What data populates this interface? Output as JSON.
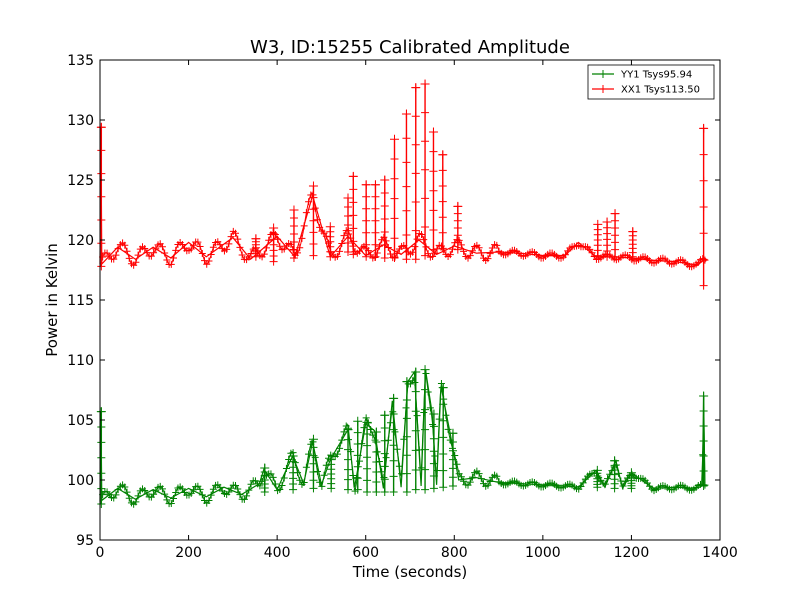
{
  "chart_data": {
    "type": "line",
    "title": "W3, ID:15255 Calibrated Amplitude",
    "xlabel": "Time (seconds)",
    "ylabel": "Power in Kelvin",
    "xlim": [
      0,
      1400
    ],
    "ylim": [
      95,
      135
    ],
    "xticks": [
      0,
      200,
      400,
      600,
      800,
      1000,
      1200,
      1400
    ],
    "yticks": [
      95,
      100,
      105,
      110,
      115,
      120,
      125,
      130,
      135
    ],
    "grid": false,
    "legend_position": "top-right",
    "marker": "plus",
    "series": [
      {
        "name": "YY1 Tsys95.94",
        "color": "#008000",
        "baseline": 99.0,
        "osc_amp": 0.55,
        "osc_period": 42,
        "points": [
          [
            0,
            98.2
          ],
          [
            2,
            105.7
          ],
          [
            4,
            98.3
          ],
          [
            40,
            99.3
          ],
          [
            80,
            98.4
          ],
          [
            120,
            99.2
          ],
          [
            160,
            98.5
          ],
          [
            200,
            99.3
          ],
          [
            240,
            98.6
          ],
          [
            280,
            99.4
          ],
          [
            320,
            98.8
          ],
          [
            360,
            99.7
          ],
          [
            370,
            100.9
          ],
          [
            400,
            99.2
          ],
          [
            435,
            102.0
          ],
          [
            460,
            99.7
          ],
          [
            480,
            103.2
          ],
          [
            500,
            99.6
          ],
          [
            520,
            101.7
          ],
          [
            560,
            104.2
          ],
          [
            575,
            99.4
          ],
          [
            600,
            104.7
          ],
          [
            620,
            104.1
          ],
          [
            640,
            99.3
          ],
          [
            660,
            106.6
          ],
          [
            680,
            99.4
          ],
          [
            695,
            108.2
          ],
          [
            710,
            109.0
          ],
          [
            725,
            99.5
          ],
          [
            735,
            109.2
          ],
          [
            750,
            105.6
          ],
          [
            760,
            99.6
          ],
          [
            770,
            107.8
          ],
          [
            790,
            104.0
          ],
          [
            810,
            100.0
          ],
          [
            850,
            100.2
          ],
          [
            900,
            99.8
          ],
          [
            950,
            99.7
          ],
          [
            1000,
            99.6
          ],
          [
            1050,
            99.5
          ],
          [
            1080,
            99.4
          ],
          [
            1120,
            100.8
          ],
          [
            1140,
            99.4
          ],
          [
            1165,
            101.6
          ],
          [
            1180,
            99.3
          ],
          [
            1200,
            100.6
          ],
          [
            1250,
            99.3
          ],
          [
            1300,
            99.4
          ],
          [
            1345,
            99.3
          ],
          [
            1360,
            99.5
          ],
          [
            1363,
            107.0
          ],
          [
            1366,
            99.6
          ],
          [
            1370,
            99.6
          ]
        ],
        "spikes": [
          [
            3,
            98.0,
            105.7
          ],
          [
            372,
            99.0,
            101.0
          ],
          [
            436,
            99.2,
            102.0
          ],
          [
            482,
            99.3,
            103.4
          ],
          [
            522,
            99.3,
            101.7
          ],
          [
            560,
            99.2,
            104.2
          ],
          [
            582,
            99.2,
            104.9
          ],
          [
            603,
            99.0,
            104.8
          ],
          [
            624,
            99.0,
            104.0
          ],
          [
            643,
            99.0,
            105.4
          ],
          [
            663,
            99.0,
            106.8
          ],
          [
            693,
            99.0,
            108.2
          ],
          [
            713,
            99.2,
            109.0
          ],
          [
            734,
            99.2,
            109.2
          ],
          [
            754,
            99.3,
            105.5
          ],
          [
            775,
            99.4,
            107.7
          ],
          [
            797,
            99.5,
            103.9
          ],
          [
            1123,
            99.4,
            100.8
          ],
          [
            1162,
            99.3,
            101.6
          ],
          [
            1200,
            99.3,
            100.6
          ],
          [
            1363,
            99.5,
            107.0
          ]
        ]
      },
      {
        "name": "XX1 Tsys113.50",
        "color": "#ff0000",
        "baseline": 118.6,
        "osc_amp": 0.65,
        "osc_period": 42,
        "points": [
          [
            0,
            118.0
          ],
          [
            2,
            129.4
          ],
          [
            4,
            118.0
          ],
          [
            40,
            119.4
          ],
          [
            80,
            118.4
          ],
          [
            120,
            119.4
          ],
          [
            160,
            118.5
          ],
          [
            200,
            119.8
          ],
          [
            240,
            118.6
          ],
          [
            300,
            120.2
          ],
          [
            340,
            118.4
          ],
          [
            400,
            120.3
          ],
          [
            440,
            118.6
          ],
          [
            480,
            123.7
          ],
          [
            520,
            118.6
          ],
          [
            560,
            120.3
          ],
          [
            600,
            118.7
          ],
          [
            640,
            119.6
          ],
          [
            680,
            118.8
          ],
          [
            720,
            120.0
          ],
          [
            760,
            118.8
          ],
          [
            800,
            119.5
          ],
          [
            850,
            118.9
          ],
          [
            900,
            119.0
          ],
          [
            950,
            118.9
          ],
          [
            1000,
            118.7
          ],
          [
            1050,
            118.7
          ],
          [
            1080,
            119.8
          ],
          [
            1120,
            118.6
          ],
          [
            1160,
            118.6
          ],
          [
            1200,
            118.5
          ],
          [
            1250,
            118.3
          ],
          [
            1300,
            118.2
          ],
          [
            1350,
            117.9
          ],
          [
            1363,
            118.4
          ],
          [
            1370,
            118.3
          ]
        ],
        "spikes": [
          [
            3,
            117.8,
            129.4
          ],
          [
            352,
            118.6,
            120.1
          ],
          [
            392,
            118.2,
            121.0
          ],
          [
            438,
            118.5,
            122.5
          ],
          [
            482,
            118.7,
            124.5
          ],
          [
            520,
            118.6,
            121.1
          ],
          [
            560,
            119.0,
            123.5
          ],
          [
            572,
            118.8,
            125.3
          ],
          [
            601,
            118.6,
            124.6
          ],
          [
            622,
            118.6,
            124.6
          ],
          [
            643,
            118.5,
            125.0
          ],
          [
            665,
            118.5,
            128.4
          ],
          [
            692,
            118.4,
            130.5
          ],
          [
            713,
            118.4,
            132.7
          ],
          [
            734,
            118.7,
            133.0
          ],
          [
            753,
            119.2,
            129.0
          ],
          [
            774,
            119.3,
            127.1
          ],
          [
            808,
            119.2,
            122.8
          ],
          [
            1124,
            118.7,
            121.3
          ],
          [
            1145,
            118.6,
            121.5
          ],
          [
            1163,
            118.6,
            122.2
          ],
          [
            1203,
            118.6,
            120.7
          ],
          [
            1363,
            116.2,
            129.3
          ]
        ]
      }
    ]
  }
}
